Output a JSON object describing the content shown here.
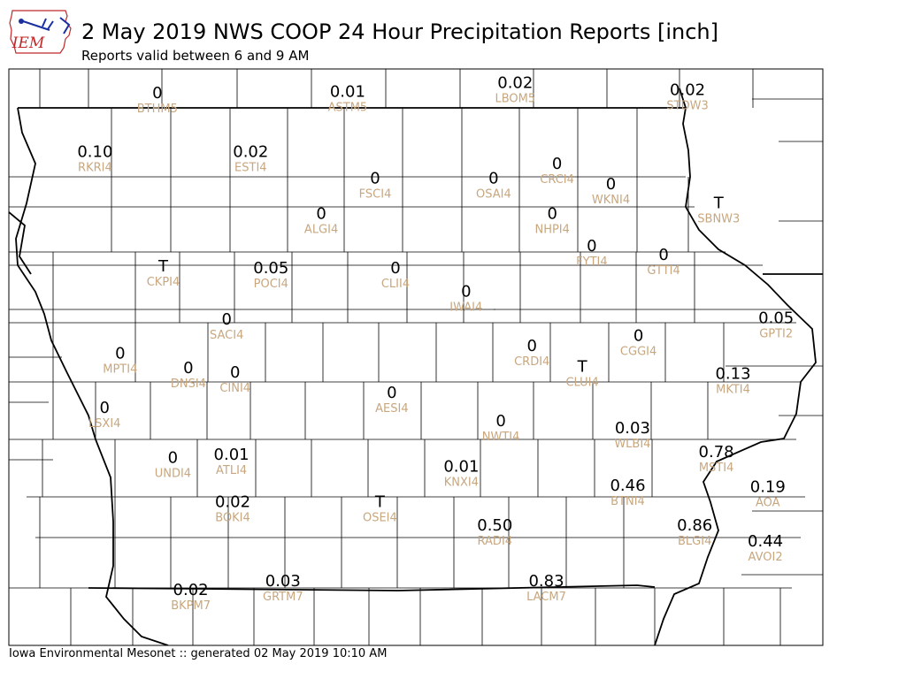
{
  "header": {
    "logo_text": "IEM",
    "title": "2 May 2019 NWS COOP 24 Hour Precipitation Reports [inch]",
    "subtitle": "Reports valid between 6 and 9 AM"
  },
  "footer": {
    "text": "Iowa Environmental Mesonet :: generated 02 May 2019 10:10 AM"
  },
  "colors": {
    "value_text": "#000000",
    "station_text": "#c8a77f",
    "county_lines": "#000000",
    "logo_red": "#c0282a",
    "logo_blue": "#1a2fa0"
  },
  "stations": [
    {
      "id": "BTHM5",
      "value": "0",
      "lon": -95.61,
      "lat": 43.76
    },
    {
      "id": "ASTM5",
      "value": "0.01",
      "lon": -94.02,
      "lat": 43.77
    },
    {
      "id": "LBOM5",
      "value": "0.02",
      "lon": -92.62,
      "lat": 43.83
    },
    {
      "id": "STDW3",
      "value": "0.02",
      "lon": -91.18,
      "lat": 43.78
    },
    {
      "id": "RKRI4",
      "value": "0.10",
      "lon": -96.13,
      "lat": 43.36
    },
    {
      "id": "ESTI4",
      "value": "0.02",
      "lon": -94.83,
      "lat": 43.36
    },
    {
      "id": "FSCI4",
      "value": "0",
      "lon": -93.79,
      "lat": 43.18
    },
    {
      "id": "OSAI4",
      "value": "0",
      "lon": -92.8,
      "lat": 43.18
    },
    {
      "id": "CRCI4",
      "value": "0",
      "lon": -92.27,
      "lat": 43.28
    },
    {
      "id": "WKNI4",
      "value": "0",
      "lon": -91.82,
      "lat": 43.14
    },
    {
      "id": "SBNW3",
      "value": "T",
      "lon": -90.92,
      "lat": 43.01
    },
    {
      "id": "ALGI4",
      "value": "0",
      "lon": -94.24,
      "lat": 42.94
    },
    {
      "id": "NHPI4",
      "value": "0",
      "lon": -92.31,
      "lat": 42.94
    },
    {
      "id": "FYTI4",
      "value": "0",
      "lon": -91.98,
      "lat": 42.72
    },
    {
      "id": "GTTI4",
      "value": "0",
      "lon": -91.38,
      "lat": 42.66
    },
    {
      "id": "CKPI4",
      "value": "T",
      "lon": -95.56,
      "lat": 42.58
    },
    {
      "id": "POCI4",
      "value": "0.05",
      "lon": -94.66,
      "lat": 42.57
    },
    {
      "id": "CLII4",
      "value": "0",
      "lon": -93.62,
      "lat": 42.57
    },
    {
      "id": "IWAI4",
      "value": "0",
      "lon": -93.03,
      "lat": 42.41
    },
    {
      "id": "GPTI2",
      "value": "0.05",
      "lon": -90.44,
      "lat": 42.23
    },
    {
      "id": "SACI4",
      "value": "0",
      "lon": -95.03,
      "lat": 42.22
    },
    {
      "id": "CGGI4",
      "value": "0",
      "lon": -91.59,
      "lat": 42.11
    },
    {
      "id": "CRDI4",
      "value": "0",
      "lon": -92.48,
      "lat": 42.04
    },
    {
      "id": "MPTI4",
      "value": "0",
      "lon": -95.92,
      "lat": 41.99
    },
    {
      "id": "CLUI4",
      "value": "T",
      "lon": -92.06,
      "lat": 41.9
    },
    {
      "id": "MKTI4",
      "value": "0.13",
      "lon": -90.8,
      "lat": 41.85
    },
    {
      "id": "DNSI4",
      "value": "0",
      "lon": -95.35,
      "lat": 41.89
    },
    {
      "id": "CINI4",
      "value": "0",
      "lon": -94.96,
      "lat": 41.86
    },
    {
      "id": "AESI4",
      "value": "0",
      "lon": -93.65,
      "lat": 41.72
    },
    {
      "id": "LSXI4",
      "value": "0",
      "lon": -96.05,
      "lat": 41.62
    },
    {
      "id": "NWTI4",
      "value": "0",
      "lon": -92.74,
      "lat": 41.53
    },
    {
      "id": "WLBI4",
      "value": "0.03",
      "lon": -91.64,
      "lat": 41.48
    },
    {
      "id": "MSTI4",
      "value": "0.78",
      "lon": -90.94,
      "lat": 41.32
    },
    {
      "id": "UNDI4",
      "value": "0",
      "lon": -95.48,
      "lat": 41.28
    },
    {
      "id": "ATLI4",
      "value": "0.01",
      "lon": -94.99,
      "lat": 41.3
    },
    {
      "id": "KNXI4",
      "value": "0.01",
      "lon": -93.07,
      "lat": 41.22
    },
    {
      "id": "BTNI4",
      "value": "0.46",
      "lon": -91.68,
      "lat": 41.09
    },
    {
      "id": "AOA",
      "value": "0.19",
      "lon": -90.51,
      "lat": 41.08
    },
    {
      "id": "BOKI4",
      "value": "0.02",
      "lon": -94.98,
      "lat": 40.98
    },
    {
      "id": "OSEI4",
      "value": "T",
      "lon": -93.75,
      "lat": 40.98
    },
    {
      "id": "RADI4",
      "value": "0.50",
      "lon": -92.79,
      "lat": 40.82
    },
    {
      "id": "BLGI4",
      "value": "0.86",
      "lon": -91.12,
      "lat": 40.82
    },
    {
      "id": "AVOI2",
      "value": "0.44",
      "lon": -90.53,
      "lat": 40.71
    },
    {
      "id": "LACM7",
      "value": "0.83",
      "lon": -92.36,
      "lat": 40.44
    },
    {
      "id": "GRTM7",
      "value": "0.03",
      "lon": -94.56,
      "lat": 40.44
    },
    {
      "id": "BKPM7",
      "value": "0.02",
      "lon": -95.33,
      "lat": 40.38
    }
  ]
}
